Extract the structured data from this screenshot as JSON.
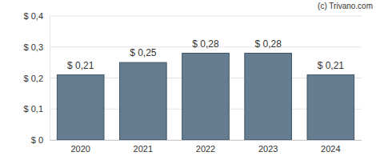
{
  "chart_data": {
    "type": "bar",
    "annotations": [
      "(c) Trivano.com"
    ],
    "categories": [
      "2020",
      "2021",
      "2022",
      "2023",
      "2024"
    ],
    "values": [
      0.21,
      0.25,
      0.28,
      0.28,
      0.21
    ],
    "value_labels": [
      "$ 0,21",
      "$ 0,25",
      "$ 0,28",
      "$ 0,28",
      "$ 0,21"
    ],
    "data_labels": true,
    "color": "#647d91",
    "ylim": [
      0,
      0.4
    ],
    "yticks": [
      {
        "value": 0,
        "label": "$ 0"
      },
      {
        "value": 0.1,
        "label": "$ 0,1"
      },
      {
        "value": 0.2,
        "label": "$ 0,2"
      },
      {
        "value": 0.3,
        "label": "$ 0,3"
      },
      {
        "value": 0.4,
        "label": "$ 0,4"
      }
    ],
    "grid": true
  }
}
